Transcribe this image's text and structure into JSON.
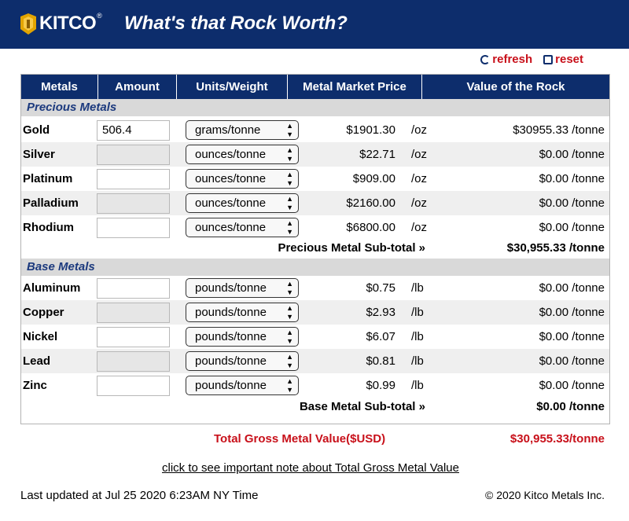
{
  "header": {
    "logo_text": "KITCO",
    "logo_reg": "®",
    "title": "What's that Rock Worth?"
  },
  "controls": {
    "refresh_label": "refresh",
    "reset_label": "reset"
  },
  "table": {
    "columns": [
      "Metals",
      "Amount",
      "Units/Weight",
      "Metal Market Price",
      "Value of the Rock"
    ],
    "precious": {
      "section_label": "Precious Metals",
      "rows": [
        {
          "metal": "Gold",
          "amount": "506.4",
          "unit": "grams/tonne",
          "price": "$1901.30",
          "per": "/oz",
          "value": "$30955.33 /tonne"
        },
        {
          "metal": "Silver",
          "amount": "",
          "unit": "ounces/tonne",
          "price": "$22.71",
          "per": "/oz",
          "value": "$0.00 /tonne"
        },
        {
          "metal": "Platinum",
          "amount": "",
          "unit": "ounces/tonne",
          "price": "$909.00",
          "per": "/oz",
          "value": "$0.00 /tonne"
        },
        {
          "metal": "Palladium",
          "amount": "",
          "unit": "ounces/tonne",
          "price": "$2160.00",
          "per": "/oz",
          "value": "$0.00 /tonne"
        },
        {
          "metal": "Rhodium",
          "amount": "",
          "unit": "ounces/tonne",
          "price": "$6800.00",
          "per": "/oz",
          "value": "$0.00 /tonne"
        }
      ],
      "subtotal_label": "Precious Metal Sub-total »",
      "subtotal_value": "$30,955.33 /tonne"
    },
    "base": {
      "section_label": "Base Metals",
      "rows": [
        {
          "metal": "Aluminum",
          "amount": "",
          "unit": "pounds/tonne",
          "price": "$0.75",
          "per": "/lb",
          "value": "$0.00 /tonne"
        },
        {
          "metal": "Copper",
          "amount": "",
          "unit": "pounds/tonne",
          "price": "$2.93",
          "per": "/lb",
          "value": "$0.00 /tonne"
        },
        {
          "metal": "Nickel",
          "amount": "",
          "unit": "pounds/tonne",
          "price": "$6.07",
          "per": "/lb",
          "value": "$0.00 /tonne"
        },
        {
          "metal": "Lead",
          "amount": "",
          "unit": "pounds/tonne",
          "price": "$0.81",
          "per": "/lb",
          "value": "$0.00 /tonne"
        },
        {
          "metal": "Zinc",
          "amount": "",
          "unit": "pounds/tonne",
          "price": "$0.99",
          "per": "/lb",
          "value": "$0.00 /tonne"
        }
      ],
      "subtotal_label": "Base Metal Sub-total »",
      "subtotal_value": "$0.00 /tonne"
    }
  },
  "totals": {
    "gross_label": "Total Gross Metal Value($USD)",
    "gross_value": "$30,955.33/tonne"
  },
  "footer": {
    "note_link": "click to see important note about Total Gross Metal Value",
    "last_updated": "Last updated at Jul 25 2020 6:23AM NY Time",
    "copyright": "© 2020 Kitco Metals Inc."
  },
  "colors": {
    "header_bg": "#0d2d6c",
    "accent_red": "#c8101a",
    "section_text": "#1c3a7e",
    "logo_gold": "#e2a400"
  }
}
